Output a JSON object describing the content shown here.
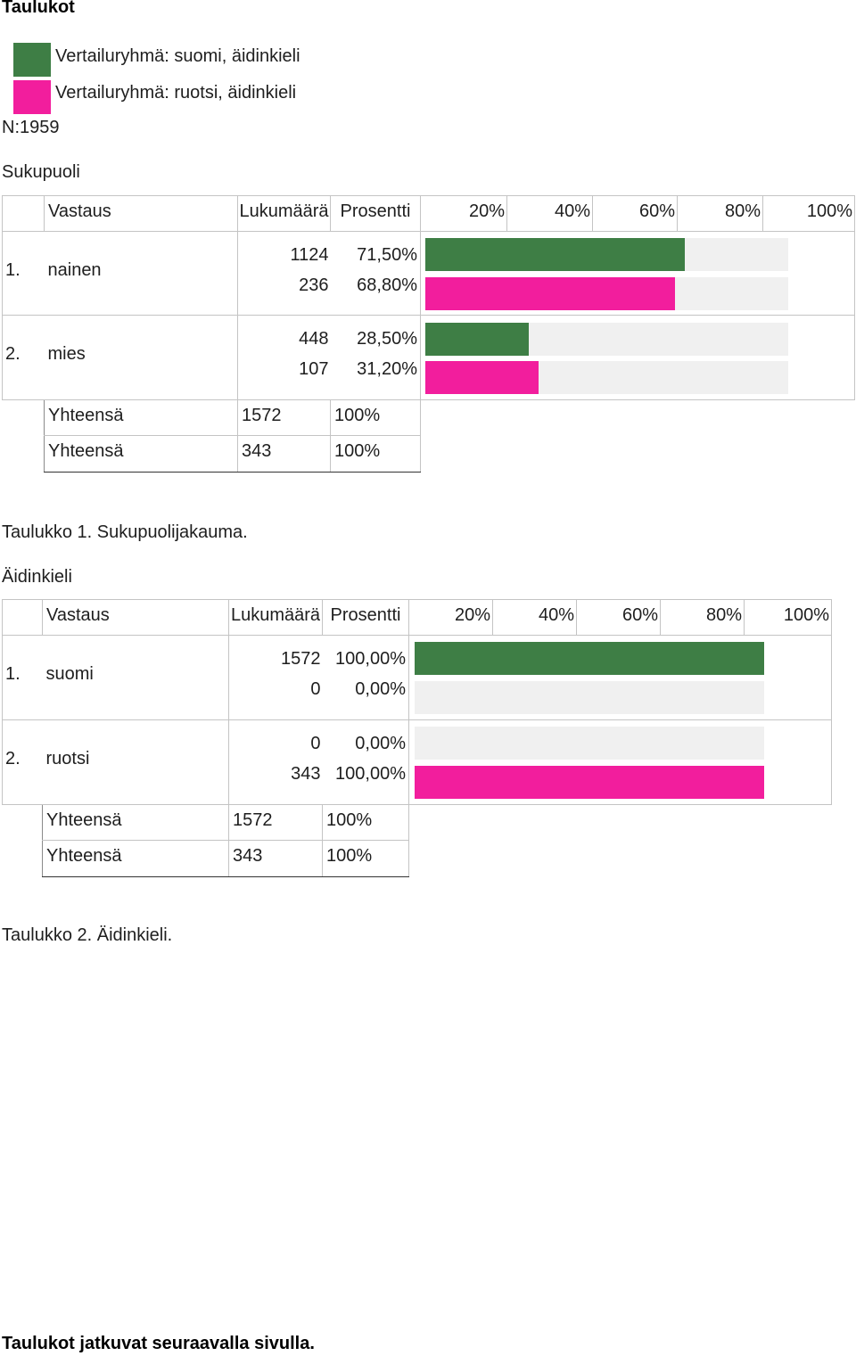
{
  "page_title": "Taulukot",
  "legend": [
    {
      "label": "Vertailuryhmä: suomi, äidinkieli",
      "color": "#3e7e45"
    },
    {
      "label": "Vertailuryhmä: ruotsi, äidinkieli",
      "color": "#f21e9d"
    }
  ],
  "n_label": "N:1959",
  "tables": [
    {
      "heading": "Sukupuoli",
      "columns": {
        "answer": "Vastaus",
        "count": "Lukumäärä",
        "percent": "Prosentti",
        "scale": [
          "20%",
          "40%",
          "60%",
          "80%",
          "100%"
        ]
      },
      "rows": [
        {
          "num": "1.",
          "label": "nainen",
          "counts": [
            "1124",
            "236"
          ],
          "percents": [
            "71,50%",
            "68,80%"
          ]
        },
        {
          "num": "2.",
          "label": "mies",
          "counts": [
            "448",
            "107"
          ],
          "percents": [
            "28,50%",
            "31,20%"
          ]
        }
      ],
      "totals": [
        {
          "label": "Yhteensä",
          "count": "1572",
          "percent": "100%"
        },
        {
          "label": "Yhteensä",
          "count": "343",
          "percent": "100%"
        }
      ],
      "caption": "Taulukko 1. Sukupuolijakauma."
    },
    {
      "heading": "Äidinkieli",
      "columns": {
        "answer": "Vastaus",
        "count": "Lukumäärä",
        "percent": "Prosentti",
        "scale": [
          "20%",
          "40%",
          "60%",
          "80%",
          "100%"
        ]
      },
      "rows": [
        {
          "num": "1.",
          "label": "suomi",
          "counts": [
            "1572",
            "0"
          ],
          "percents": [
            "100,00%",
            "0,00%"
          ]
        },
        {
          "num": "2.",
          "label": "ruotsi",
          "counts": [
            "0",
            "343"
          ],
          "percents": [
            "0,00%",
            "100,00%"
          ]
        }
      ],
      "totals": [
        {
          "label": "Yhteensä",
          "count": "1572",
          "percent": "100%"
        },
        {
          "label": "Yhteensä",
          "count": "343",
          "percent": "100%"
        }
      ],
      "caption": "Taulukko 2. Äidinkieli."
    }
  ],
  "footer_note": "Taulukot jatkuvat seuraavalla sivulla."
}
